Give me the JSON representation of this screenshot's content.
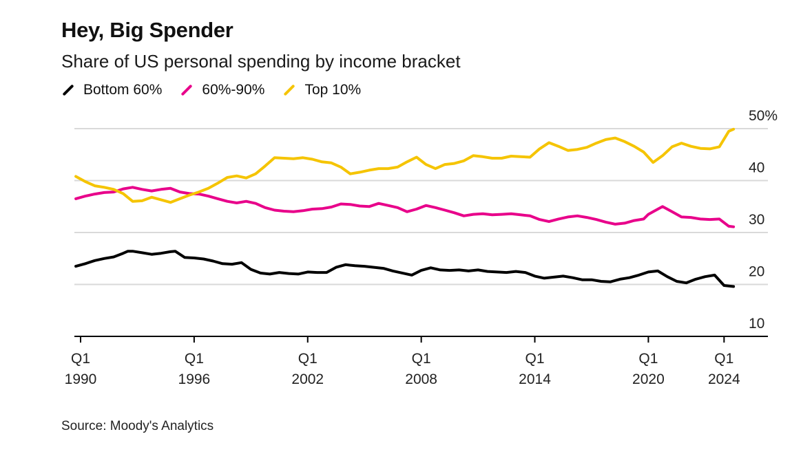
{
  "title": "Hey, Big Spender",
  "subtitle": "Share of US personal spending by income bracket",
  "source": "Source: Moody's Analytics",
  "chart_data": {
    "type": "line",
    "title": "Hey, Big Spender",
    "subtitle": "Share of US personal spending by income bracket",
    "xlim": [
      1990,
      2026.5
    ],
    "ylim": [
      10,
      50
    ],
    "y_ticks": [
      {
        "value": 50,
        "label": "50%"
      },
      {
        "value": 40,
        "label": "40"
      },
      {
        "value": 30,
        "label": "30"
      },
      {
        "value": 20,
        "label": "20"
      },
      {
        "value": 10,
        "label": "10"
      }
    ],
    "x_ticks": [
      {
        "value": 1990,
        "top": "Q1",
        "bottom": "1990"
      },
      {
        "value": 1996,
        "top": "Q1",
        "bottom": "1996"
      },
      {
        "value": 2002,
        "top": "Q1",
        "bottom": "2002"
      },
      {
        "value": 2008,
        "top": "Q1",
        "bottom": "2008"
      },
      {
        "value": 2014,
        "top": "Q1",
        "bottom": "2014"
      },
      {
        "value": 2020,
        "top": "Q1",
        "bottom": "2020"
      },
      {
        "value": 2024,
        "top": "Q1",
        "bottom": "2024"
      }
    ],
    "grid": true,
    "legend_position": "top-left",
    "series": [
      {
        "name": "Bottom 60%",
        "color": "#000000",
        "x": [
          1989.75,
          1990.25,
          1990.75,
          1991.25,
          1991.75,
          1992.25,
          1992.5,
          1992.75,
          1993.25,
          1993.75,
          1994.25,
          1994.75,
          1995,
          1995.5,
          1996,
          1996.5,
          1997,
          1997.5,
          1998,
          1998.5,
          1999,
          1999.5,
          2000,
          2000.5,
          2001,
          2001.5,
          2002,
          2002.5,
          2003,
          2003.5,
          2004,
          2004.5,
          2005,
          2005.5,
          2006,
          2006.5,
          2007,
          2007.5,
          2008,
          2008.5,
          2009,
          2009.5,
          2010,
          2010.5,
          2011,
          2011.5,
          2012,
          2012.5,
          2013,
          2013.5,
          2014,
          2014.5,
          2015,
          2015.5,
          2016,
          2016.5,
          2017,
          2017.5,
          2018,
          2018.5,
          2019,
          2019.5,
          2020,
          2020.5,
          2021,
          2021.5,
          2022,
          2022.5,
          2023,
          2023.5,
          2024,
          2024.5
        ],
        "values": [
          23.5,
          24.0,
          24.6,
          25.0,
          25.3,
          26.0,
          26.4,
          26.4,
          26.1,
          25.8,
          26.0,
          26.3,
          26.4,
          25.2,
          25.1,
          24.9,
          24.5,
          24.0,
          23.9,
          24.2,
          22.9,
          22.2,
          22.0,
          22.3,
          22.1,
          22.0,
          22.4,
          22.3,
          22.3,
          23.3,
          23.8,
          23.6,
          23.5,
          23.3,
          23.1,
          22.6,
          22.2,
          21.8,
          22.7,
          23.2,
          22.8,
          22.7,
          22.8,
          22.6,
          22.8,
          22.5,
          22.4,
          22.3,
          22.5,
          22.3,
          21.6,
          21.2,
          21.4,
          21.6,
          21.3,
          20.9,
          20.9,
          20.6,
          20.5,
          21.0,
          21.3,
          21.8,
          22.4,
          22.6,
          21.5,
          20.6,
          20.3,
          21.0,
          21.5,
          21.8,
          19.8,
          19.6
        ]
      },
      {
        "name": "60%-90%",
        "color": "#e8008a",
        "x": [
          1989.75,
          1990.25,
          1990.75,
          1991.25,
          1991.75,
          1992.25,
          1992.75,
          1993.25,
          1993.75,
          1994.25,
          1994.75,
          1995.25,
          1995.75,
          1996.25,
          1996.75,
          1997.25,
          1997.75,
          1998.25,
          1998.75,
          1999.25,
          1999.75,
          2000.25,
          2000.75,
          2001.25,
          2001.75,
          2002.25,
          2002.75,
          2003.25,
          2003.75,
          2004.25,
          2004.75,
          2005.25,
          2005.75,
          2006.25,
          2006.75,
          2007.25,
          2007.75,
          2008.25,
          2008.75,
          2009.25,
          2009.75,
          2010.25,
          2010.75,
          2011.25,
          2011.75,
          2012.25,
          2012.75,
          2013.25,
          2013.75,
          2014.25,
          2014.75,
          2015.25,
          2015.75,
          2016.25,
          2016.75,
          2017.25,
          2017.75,
          2018.25,
          2018.75,
          2019.25,
          2019.75,
          2020,
          2020.25,
          2020.75,
          2021.25,
          2021.75,
          2022.25,
          2022.75,
          2023.25,
          2023.75,
          2024.25,
          2024.5
        ],
        "values": [
          36.5,
          37.0,
          37.4,
          37.7,
          37.8,
          38.4,
          38.7,
          38.3,
          38.0,
          38.3,
          38.5,
          37.8,
          37.5,
          37.4,
          37.0,
          36.5,
          36.0,
          35.7,
          36.0,
          35.6,
          34.8,
          34.3,
          34.1,
          34.0,
          34.2,
          34.5,
          34.6,
          34.9,
          35.5,
          35.4,
          35.1,
          35.0,
          35.6,
          35.2,
          34.8,
          34.0,
          34.5,
          35.2,
          34.8,
          34.3,
          33.8,
          33.2,
          33.5,
          33.6,
          33.4,
          33.5,
          33.6,
          33.4,
          33.2,
          32.5,
          32.1,
          32.6,
          33.0,
          33.2,
          32.9,
          32.5,
          32.0,
          31.6,
          31.8,
          32.3,
          32.6,
          33.5,
          34.0,
          35.0,
          34.0,
          33.0,
          32.9,
          32.6,
          32.5,
          32.6,
          31.2,
          31.1
        ]
      },
      {
        "name": "Top 10%",
        "color": "#f5c400",
        "x": [
          1989.75,
          1990.25,
          1990.75,
          1991.25,
          1991.75,
          1992.25,
          1992.75,
          1993.25,
          1993.75,
          1994.25,
          1994.75,
          1995.25,
          1995.75,
          1996.25,
          1996.75,
          1997.25,
          1997.75,
          1998.25,
          1998.75,
          1999.25,
          1999.75,
          2000.25,
          2000.75,
          2001.25,
          2001.75,
          2002.25,
          2002.75,
          2003.25,
          2003.75,
          2004.25,
          2004.75,
          2005.25,
          2005.75,
          2006.25,
          2006.75,
          2007.25,
          2007.75,
          2008.25,
          2008.75,
          2009.25,
          2009.75,
          2010.25,
          2010.75,
          2011.25,
          2011.75,
          2012.25,
          2012.75,
          2013.25,
          2013.75,
          2014.25,
          2014.75,
          2015.25,
          2015.75,
          2016.25,
          2016.75,
          2017.25,
          2017.75,
          2018.25,
          2018.75,
          2019.25,
          2019.75,
          2020,
          2020.25,
          2020.75,
          2021.25,
          2021.75,
          2022.25,
          2022.75,
          2023.25,
          2023.75,
          2024.25,
          2024.5
        ],
        "values": [
          40.8,
          39.8,
          39.0,
          38.7,
          38.3,
          37.5,
          36.0,
          36.1,
          36.8,
          36.3,
          35.8,
          36.5,
          37.2,
          37.8,
          38.5,
          39.5,
          40.6,
          40.9,
          40.5,
          41.3,
          42.8,
          44.4,
          44.3,
          44.2,
          44.4,
          44.1,
          43.6,
          43.4,
          42.6,
          41.3,
          41.6,
          42.0,
          42.3,
          42.3,
          42.6,
          43.6,
          44.5,
          43.1,
          42.3,
          43.1,
          43.3,
          43.8,
          44.8,
          44.6,
          44.3,
          44.3,
          44.7,
          44.6,
          44.5,
          46.1,
          47.3,
          46.6,
          45.8,
          46.0,
          46.4,
          47.2,
          47.9,
          48.2,
          47.5,
          46.6,
          45.5,
          44.5,
          43.5,
          44.8,
          46.5,
          47.2,
          46.6,
          46.2,
          46.1,
          46.5,
          49.5,
          49.9
        ]
      }
    ]
  }
}
